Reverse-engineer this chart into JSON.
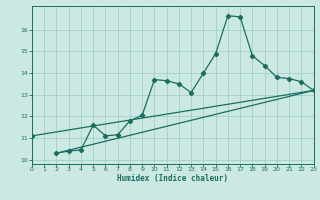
{
  "xlabel": "Humidex (Indice chaleur)",
  "bg_color": "#cce8e2",
  "grid_color": "#99ccC4",
  "line_color": "#1a6e60",
  "xlim": [
    0,
    23
  ],
  "ylim": [
    9.8,
    17.1
  ],
  "xticks": [
    0,
    1,
    2,
    3,
    4,
    5,
    6,
    7,
    8,
    9,
    10,
    11,
    12,
    13,
    14,
    15,
    16,
    17,
    18,
    19,
    20,
    21,
    22,
    23
  ],
  "yticks": [
    10,
    11,
    12,
    13,
    14,
    15,
    16
  ],
  "curve_x": [
    2,
    3,
    4,
    5,
    6,
    7,
    8,
    9,
    10,
    11,
    12,
    13,
    14,
    15,
    16,
    17,
    18,
    19,
    20,
    21,
    22,
    23
  ],
  "curve_y": [
    10.3,
    10.4,
    10.45,
    11.6,
    11.1,
    11.15,
    11.8,
    12.05,
    13.7,
    13.65,
    13.5,
    13.1,
    14.0,
    14.9,
    16.65,
    16.6,
    14.8,
    14.35,
    13.8,
    13.75,
    13.6,
    13.2
  ],
  "ref_line1_x": [
    0,
    23
  ],
  "ref_line1_y": [
    11.1,
    13.2
  ],
  "ref_line2_x": [
    2,
    23
  ],
  "ref_line2_y": [
    10.3,
    13.2
  ],
  "start_marker_x": [
    0
  ],
  "start_marker_y": [
    11.1
  ]
}
